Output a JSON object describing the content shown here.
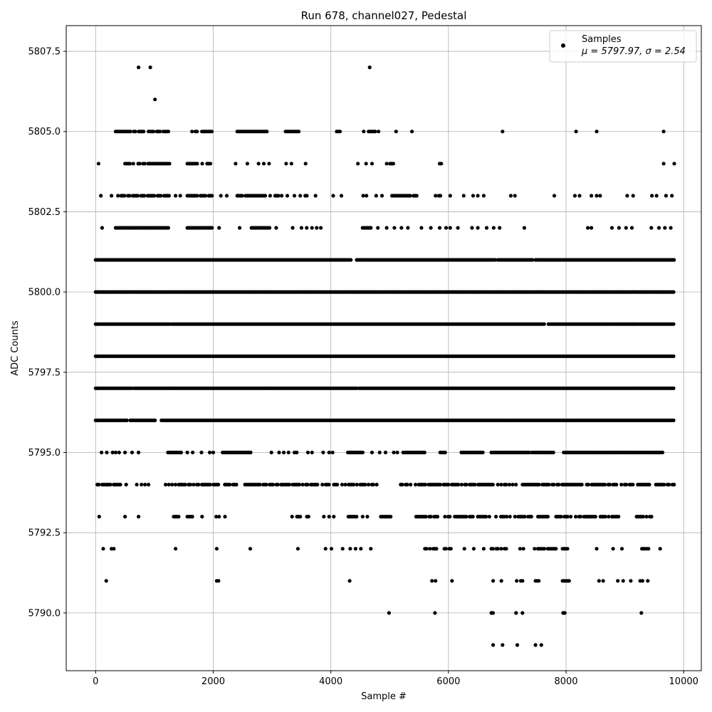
{
  "chart_data": {
    "type": "scatter",
    "title": "Run 678, channel027, Pedestal",
    "xlabel": "Sample #",
    "ylabel": "ADC Counts",
    "xlim": [
      -500,
      10300
    ],
    "ylim": [
      5788.2,
      5808.3
    ],
    "xticks": [
      0,
      2000,
      4000,
      6000,
      8000,
      10000
    ],
    "xtick_labels": [
      "0",
      "2000",
      "4000",
      "6000",
      "8000",
      "10000"
    ],
    "yticks": [
      5790.0,
      5792.5,
      5795.0,
      5797.5,
      5800.0,
      5802.5,
      5805.0,
      5807.5
    ],
    "ytick_labels": [
      "5790.0",
      "5792.5",
      "5795.0",
      "5797.5",
      "5800.0",
      "5802.5",
      "5805.0",
      "5807.5"
    ],
    "grid": true,
    "legend": {
      "placement": "top-right",
      "entries": [
        {
          "label": "Samples",
          "stats": "μ = 5797.97, σ = 2.54"
        }
      ]
    },
    "marker_color": "#000000",
    "series": [
      {
        "name": "Samples",
        "level_coverage": [
          {
            "y": 5807,
            "x": [
              730,
              930,
              4660
            ]
          },
          {
            "y": 5806,
            "x": [
              1010
            ]
          },
          {
            "y": 5805,
            "ranges": [
              [
                340,
                1240
              ],
              [
                1640,
                1990
              ],
              [
                2380,
                2950
              ],
              [
                3230,
                3460
              ],
              [
                4100,
                4180
              ],
              [
                4530,
                4810
              ]
            ],
            "x": [
              5110,
              5380,
              6920,
              8170,
              8520,
              9660
            ]
          },
          {
            "y": 5804,
            "ranges": [
              [
                500,
                1260
              ],
              [
                1560,
                2000
              ],
              [
                4950,
                5080
              ],
              [
                5850,
                5920
              ]
            ],
            "x": [
              50,
              2380,
              2580,
              2770,
              2860,
              2950,
              3240,
              3330,
              3570,
              4460,
              4600,
              4700,
              9660,
              9840
            ]
          },
          {
            "y": 5803,
            "ranges": [
              [
                380,
                1260
              ],
              [
                1560,
                2000
              ],
              [
                2380,
                3190
              ],
              [
                3480,
                3620
              ],
              [
                4550,
                4700
              ],
              [
                5040,
                5480
              ],
              [
                5780,
                5890
              ]
            ],
            "x": [
              90,
              270,
              1360,
              1440,
              2130,
              2230,
              3260,
              3380,
              3740,
              4040,
              4180,
              4770,
              4870,
              6030,
              6260,
              6420,
              6500,
              6600,
              7060,
              7130,
              7800,
              8150,
              8230,
              8430,
              8520,
              8580,
              9040,
              9140,
              9460,
              9540,
              9700,
              9800
            ]
          },
          {
            "y": 5802,
            "ranges": [
              [
                340,
                1260
              ],
              [
                1560,
                2000
              ],
              [
                2650,
                2960
              ],
              [
                4540,
                4700
              ]
            ],
            "x": [
              110,
              2100,
              2450,
              3070,
              3350,
              3500,
              3590,
              3680,
              3760,
              3830,
              4800,
              4950,
              5080,
              5200,
              5310,
              5540,
              5700,
              5850,
              5960,
              6030,
              6160,
              6400,
              6500,
              6650,
              6770,
              6870,
              7290,
              8370,
              8430,
              8780,
              8900,
              9020,
              9120,
              9450,
              9580,
              9680,
              9780
            ]
          },
          {
            "y": 5801,
            "ranges": [
              [
                0,
                4360
              ],
              [
                4440,
                6800
              ],
              [
                6840,
                7450
              ],
              [
                7480,
                7940
              ],
              [
                7960,
                9850
              ]
            ]
          },
          {
            "y": 5800,
            "ranges": [
              [
                0,
                9850
              ]
            ]
          },
          {
            "y": 5799,
            "ranges": [
              [
                0,
                1260
              ],
              [
                1300,
                7640
              ],
              [
                7700,
                9850
              ]
            ]
          },
          {
            "y": 5798,
            "ranges": [
              [
                0,
                9850
              ]
            ]
          },
          {
            "y": 5797,
            "ranges": [
              [
                0,
                620
              ],
              [
                660,
                1980
              ],
              [
                2000,
                4460
              ],
              [
                4480,
                9850
              ]
            ]
          },
          {
            "y": 5796,
            "ranges": [
              [
                0,
                540
              ],
              [
                590,
                1020
              ],
              [
                1120,
                9850
              ]
            ]
          },
          {
            "y": 5795,
            "ranges": [
              [
                1230,
                1480
              ],
              [
                2160,
                2660
              ],
              [
                4290,
                4560
              ],
              [
                5230,
                5620
              ],
              [
                5860,
                5970
              ],
              [
                6220,
                6590
              ],
              [
                6730,
                7380
              ],
              [
                7420,
                7790
              ],
              [
                7960,
                9650
              ]
            ],
            "x": [
              100,
              190,
              290,
              340,
              400,
              500,
              620,
              730,
              1560,
              1650,
              1800,
              1940,
              2000,
              2990,
              3120,
              3200,
              3280,
              3380,
              3420,
              3610,
              3680,
              3870,
              3970,
              4030,
              4700,
              4830,
              4930,
              5070,
              5130
            ]
          },
          {
            "y": 5794,
            "ranges": [
              [
                0,
                440
              ],
              [
                1190,
                2400
              ],
              [
                2540,
                4800
              ],
              [
                5160,
                9850
              ]
            ],
            "x": [
              520,
              700,
              780,
              840,
              900
            ]
          },
          {
            "y": 5793,
            "ranges": [
              [
                1300,
                1480
              ],
              [
                1560,
                1690
              ],
              [
                3340,
                3620
              ],
              [
                4270,
                4440
              ],
              [
                4850,
                5030
              ],
              [
                5450,
                5830
              ],
              [
                5940,
                6950
              ],
              [
                6990,
                8030
              ],
              [
                8080,
                8900
              ],
              [
                9200,
                9500
              ]
            ],
            "x": [
              60,
              500,
              730,
              1810,
              2050,
              2100,
              2200,
              3880,
              3970,
              4050,
              4540,
              4620
            ]
          },
          {
            "y": 5792,
            "ranges": [
              [
                5600,
                5830
              ],
              [
                5930,
                6090
              ],
              [
                6730,
                7000
              ],
              [
                7190,
                7300
              ],
              [
                7380,
                7850
              ],
              [
                7940,
                8050
              ],
              [
                9290,
                9420
              ]
            ],
            "x": [
              130,
              270,
              310,
              1360,
              2060,
              2630,
              3440,
              3910,
              4010,
              4200,
              4330,
              4420,
              4510,
              4680,
              6270,
              6430,
              6600,
              8520,
              8800,
              8950,
              9600
            ]
          },
          {
            "y": 5791,
            "ranges": [
              [
                7940,
                8060
              ],
              [
                7480,
                7580
              ]
            ],
            "x": [
              180,
              2060,
              2090,
              4320,
              5720,
              5780,
              6060,
              6760,
              6900,
              7160,
              7230,
              7260,
              8560,
              8630,
              8880,
              8970,
              9100,
              9260,
              9300,
              9390
            ]
          },
          {
            "y": 5790,
            "ranges": [
              [
                6730,
                6810
              ],
              [
                7150,
                7200
              ],
              [
                7230,
                7310
              ],
              [
                7950,
                8010
              ]
            ],
            "x": [
              4990,
              5770,
              9280
            ]
          },
          {
            "y": 5789,
            "x": [
              6760,
              6920,
              7170,
              7480,
              7580
            ]
          }
        ]
      }
    ]
  }
}
